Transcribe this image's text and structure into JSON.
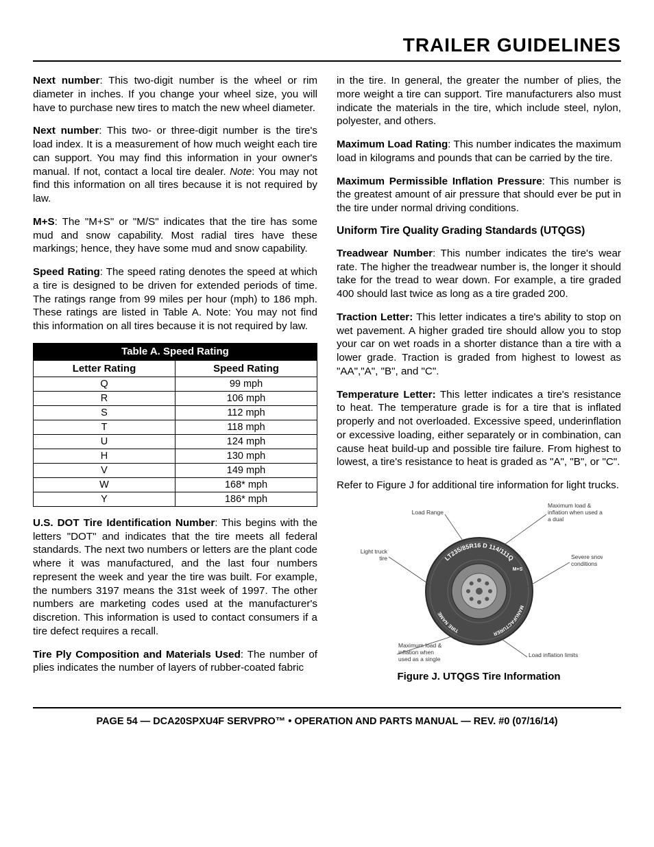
{
  "header": {
    "title": "TRAILER GUIDELINES"
  },
  "left": {
    "p1_bold": "Next number",
    "p1": ": This two-digit number is the wheel or rim diameter in inches. If you change your wheel size, you will have to purchase new tires to match the new wheel diameter.",
    "p2_bold": "Next number",
    "p2a": ": This two- or three-digit number is the tire's load index. It is a measurement of how much weight each tire can support. You may find this information in your owner's manual. If not, contact a local tire dealer. ",
    "p2_note": "Note",
    "p2b": ": You may not find this information on all tires because it is not required by law.",
    "p3_bold": "M+S",
    "p3": ": The \"M+S\" or \"M/S\" indicates that the tire has some mud and snow capability. Most radial tires have these markings; hence, they have some mud and snow capability.",
    "p4_bold": "Speed Rating",
    "p4": ": The speed rating denotes the speed at which a tire is designed to be driven for extended periods of time. The ratings range from 99 miles per hour (mph) to 186 mph. These ratings are listed in Table A. Note: You may not find this information on all tires because it is not required by law.",
    "p5_bold": "U.S. DOT Tire Identification Number",
    "p5": ": This begins with the letters \"DOT\" and indicates that the tire meets all federal standards. The next two numbers or letters are the plant code where it was manufactured, and the last four numbers represent the week and year the tire was built. For example, the numbers 3197 means the 31st week of 1997. The other numbers are marketing codes used at the manufacturer's discretion. This information is used to contact consumers if a tire defect requires a recall.",
    "p6_bold": "Tire Ply Composition and Materials Used",
    "p6": ": The number of plies indicates the number of layers of rubber-coated fabric"
  },
  "right": {
    "p0": "in the tire. In general, the greater the number of plies, the more weight a tire can support. Tire manufacturers also must indicate the materials in the tire, which include steel, nylon, polyester, and others.",
    "p1_bold": "Maximum Load Rating",
    "p1": ": This number indicates the maximum load in kilograms and pounds that can be carried by the tire.",
    "p2_bold": "Maximum Permissible Inflation Pressure",
    "p2": ": This number is the greatest amount of air pressure that should ever be put in the tire under normal driving conditions.",
    "subhead": "Uniform Tire Quality Grading Standards (UTQGS)",
    "p3_bold": "Treadwear Number",
    "p3": ": This number indicates the tire's wear rate. The higher the treadwear number is, the longer it should take for the tread to wear down. For example, a tire graded 400 should last twice as long as a tire graded 200.",
    "p4_bold": "Traction Letter:",
    "p4": " This letter indicates a tire's ability to stop on wet pavement. A higher graded tire should allow you to stop your car on wet roads in a shorter distance than a tire with a lower grade. Traction is graded from highest to lowest as \"AA\",\"A\", \"B\", and \"C\".",
    "p5_bold": "Temperature Letter:",
    "p5": " This letter indicates a tire's resistance to heat. The temperature grade is for a tire that is inflated properly and not overloaded. Excessive speed, underinflation or excessive loading, either separately or in combination, can cause heat build-up and possible tire failure. From highest to lowest, a tire's resistance to heat is graded as \"A\", \"B\", or \"C\".",
    "p6": "Refer to Figure J for additional tire information for light trucks.",
    "fig_caption": "Figure J. UTQGS Tire Information"
  },
  "table": {
    "caption": "Table A. Speed Rating",
    "headers": [
      "Letter Rating",
      "Speed Rating"
    ],
    "rows": [
      [
        "Q",
        "99 mph"
      ],
      [
        "R",
        "106 mph"
      ],
      [
        "S",
        "112 mph"
      ],
      [
        "T",
        "118 mph"
      ],
      [
        "U",
        "124 mph"
      ],
      [
        "H",
        "130 mph"
      ],
      [
        "V",
        "149 mph"
      ],
      [
        "W",
        "168* mph"
      ],
      [
        "Y",
        "186* mph"
      ]
    ]
  },
  "figure": {
    "labels": {
      "load_range": "Load Range",
      "max_dual": "Maximum load & inflation when used as a dual",
      "light_truck": "Light truck tire",
      "severe_snow": "Severe snow conditions",
      "max_single": "Maximum load & inflation when used as a single",
      "load_limits": "Load inflation limits"
    },
    "tire_text_top": "LT235/85R16 D 114/111Q",
    "tire_text_ms": "M+S",
    "tire_text_left": "TIRE NAME",
    "tire_text_right": "MANUFACTURER",
    "colors": {
      "tire_fill": "#4a4a4a",
      "tire_stroke": "#2a2a2a",
      "hub_fill": "#888888",
      "label_color": "#333333",
      "line_color": "#444444"
    }
  },
  "footer": {
    "text": "PAGE 54 — DCA20SPXU4F SERVPRO™ • OPERATION AND PARTS MANUAL — REV. #0 (07/16/14)"
  }
}
